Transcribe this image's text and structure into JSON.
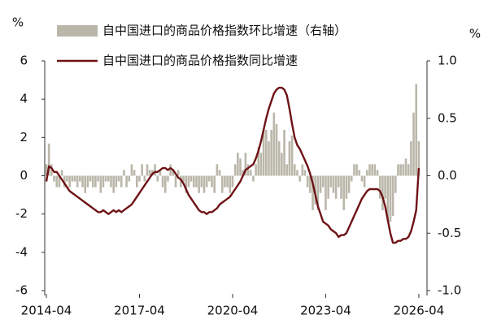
{
  "chart_data": {
    "type": "bar-line",
    "y_label": "%",
    "y2_label": "%",
    "x": [
      "2014-04",
      "2014-05",
      "2014-06",
      "2014-07",
      "2014-08",
      "2014-09",
      "2014-10",
      "2014-11",
      "2014-12",
      "2015-01",
      "2015-02",
      "2015-03",
      "2015-04",
      "2015-05",
      "2015-06",
      "2015-07",
      "2015-08",
      "2015-09",
      "2015-10",
      "2015-11",
      "2015-12",
      "2016-01",
      "2016-02",
      "2016-03",
      "2016-04",
      "2016-05",
      "2016-06",
      "2016-07",
      "2016-08",
      "2016-09",
      "2016-10",
      "2016-11",
      "2016-12",
      "2017-01",
      "2017-02",
      "2017-03",
      "2017-04",
      "2017-05",
      "2017-06",
      "2017-07",
      "2017-08",
      "2017-09",
      "2017-10",
      "2017-11",
      "2017-12",
      "2018-01",
      "2018-02",
      "2018-03",
      "2018-04",
      "2018-05",
      "2018-06",
      "2018-07",
      "2018-08",
      "2018-09",
      "2018-10",
      "2018-11",
      "2018-12",
      "2019-01",
      "2019-02",
      "2019-03",
      "2019-04",
      "2019-05",
      "2019-06",
      "2019-07",
      "2019-08",
      "2019-09",
      "2019-10",
      "2019-11",
      "2019-12",
      "2020-01",
      "2020-02",
      "2020-03",
      "2020-04",
      "2020-05",
      "2020-06",
      "2020-07",
      "2020-08",
      "2020-09",
      "2020-10",
      "2020-11",
      "2020-12",
      "2021-01",
      "2021-02",
      "2021-03",
      "2021-04",
      "2021-05",
      "2021-06",
      "2021-07",
      "2021-08",
      "2021-09",
      "2021-10",
      "2021-11",
      "2021-12",
      "2022-01",
      "2022-02",
      "2022-03",
      "2022-04",
      "2022-05",
      "2022-06",
      "2022-07",
      "2022-08",
      "2022-09",
      "2022-10",
      "2022-11",
      "2022-12",
      "2023-01",
      "2023-02",
      "2023-03",
      "2023-04",
      "2023-05",
      "2023-06",
      "2023-07",
      "2023-08",
      "2023-09",
      "2023-10",
      "2023-11",
      "2023-12",
      "2024-01",
      "2024-02",
      "2024-03",
      "2024-04",
      "2024-05",
      "2024-06",
      "2024-07",
      "2024-08",
      "2024-09",
      "2024-10",
      "2024-11",
      "2024-12",
      "2025-01",
      "2025-02",
      "2025-03",
      "2025-04",
      "2025-05",
      "2025-06",
      "2025-07",
      "2025-08",
      "2025-09",
      "2025-10",
      "2025-11",
      "2025-12",
      "2026-01",
      "2026-02",
      "2026-03",
      "2026-04"
    ],
    "xticks": [
      "2014-04",
      "2017-04",
      "2020-04",
      "2023-04",
      "2026-04"
    ],
    "series": [
      {
        "name": "自中国进口的商品价格指数环比增速（右轴）",
        "type": "bar",
        "axis": "y2",
        "color": "#bab7aa",
        "values": [
          0.1,
          0.28,
          0.1,
          -0.05,
          -0.1,
          -0.1,
          0.05,
          -0.1,
          -0.05,
          -0.1,
          -0.05,
          -0.05,
          -0.1,
          -0.05,
          -0.1,
          -0.15,
          -0.1,
          -0.05,
          -0.1,
          -0.1,
          -0.05,
          -0.15,
          -0.1,
          -0.05,
          -0.05,
          -0.1,
          -0.15,
          -0.1,
          -0.05,
          -0.1,
          0.05,
          -0.1,
          -0.05,
          0.1,
          0.05,
          -0.1,
          -0.05,
          0.1,
          -0.05,
          0.1,
          0.05,
          0.05,
          0.1,
          -0.05,
          0.05,
          -0.1,
          -0.15,
          -0.05,
          0.1,
          0.05,
          -0.1,
          0.05,
          -0.1,
          -0.05,
          -0.15,
          -0.1,
          -0.05,
          -0.1,
          -0.1,
          -0.15,
          -0.1,
          -0.15,
          -0.1,
          -0.05,
          -0.1,
          -0.15,
          0.1,
          0.05,
          -0.15,
          -0.1,
          -0.1,
          -0.15,
          -0.1,
          0.1,
          0.2,
          0.15,
          0.05,
          0.2,
          0.1,
          0.05,
          -0.05,
          0.1,
          0.25,
          0.2,
          0.4,
          0.4,
          0.3,
          0.4,
          0.55,
          0.45,
          0.3,
          0.2,
          0.4,
          0.1,
          0.3,
          0.35,
          0.1,
          0.05,
          -0.05,
          0.1,
          0.05,
          -0.1,
          -0.15,
          -0.3,
          -0.25,
          -0.3,
          -0.15,
          -0.1,
          -0.3,
          -0.2,
          -0.1,
          -0.15,
          -0.2,
          -0.1,
          -0.2,
          -0.3,
          -0.2,
          -0.15,
          -0.05,
          0.1,
          0.1,
          0.05,
          -0.05,
          -0.1,
          0.05,
          0.1,
          0.1,
          0.1,
          0.05,
          -0.2,
          -0.3,
          -0.2,
          -0.4,
          -0.4,
          -0.35,
          -0.15,
          0.1,
          0.1,
          0.1,
          0.15,
          0.1,
          0.3,
          0.55,
          0.8,
          0.3
        ]
      },
      {
        "name": "自中国进口的商品价格指数同比增速",
        "type": "line",
        "axis": "y",
        "color": "#6e1216",
        "values": [
          -0.3,
          0.5,
          0.4,
          0.2,
          0.2,
          0,
          -0.2,
          -0.4,
          -0.6,
          -0.8,
          -0.9,
          -1.0,
          -1.1,
          -1.2,
          -1.3,
          -1.4,
          -1.5,
          -1.6,
          -1.7,
          -1.8,
          -1.9,
          -1.9,
          -1.8,
          -1.9,
          -2.0,
          -1.9,
          -1.8,
          -1.9,
          -1.8,
          -1.9,
          -1.8,
          -1.7,
          -1.6,
          -1.5,
          -1.3,
          -1.1,
          -0.9,
          -0.7,
          -0.5,
          -0.3,
          -0.1,
          0.1,
          0.2,
          0.2,
          0.3,
          0.4,
          0.4,
          0.3,
          0.4,
          0.3,
          0.1,
          -0.1,
          -0.2,
          -0.4,
          -0.7,
          -1.0,
          -1.2,
          -1.4,
          -1.6,
          -1.8,
          -1.9,
          -1.9,
          -2.0,
          -1.9,
          -1.9,
          -1.8,
          -1.7,
          -1.5,
          -1.4,
          -1.3,
          -1.2,
          -1.1,
          -0.9,
          -0.7,
          -0.5,
          -0.3,
          0,
          0.3,
          0.4,
          0.5,
          0.6,
          0.9,
          1.3,
          1.8,
          2.4,
          3.0,
          3.5,
          3.9,
          4.3,
          4.5,
          4.6,
          4.6,
          4.5,
          4.2,
          3.5,
          2.7,
          2.0,
          1.6,
          1.4,
          1.1,
          0.8,
          0.5,
          0.1,
          -0.4,
          -1.0,
          -1.6,
          -2.0,
          -2.4,
          -2.5,
          -2.6,
          -2.8,
          -2.9,
          -3.0,
          -3.2,
          -3.1,
          -3.1,
          -3.0,
          -2.7,
          -2.4,
          -2.1,
          -1.8,
          -1.5,
          -1.2,
          -1.0,
          -0.8,
          -0.7,
          -0.7,
          -0.7,
          -0.7,
          -0.8,
          -1.1,
          -1.6,
          -2.3,
          -3.0,
          -3.5,
          -3.5,
          -3.4,
          -3.4,
          -3.3,
          -3.3,
          -3.2,
          -2.9,
          -2.4,
          -1.8,
          0.4
        ]
      }
    ],
    "ylim": [
      -6,
      6
    ],
    "yticks": [
      -6,
      -4,
      -2,
      0,
      2,
      4,
      6
    ],
    "y2lim": [
      -1,
      1
    ],
    "y2ticks": [
      {
        "value": -1,
        "label": "-1.0"
      },
      {
        "value": -0.5,
        "label": "-0.5"
      },
      {
        "value": 0,
        "label": "0.0"
      },
      {
        "value": 0.5,
        "label": "0.5"
      },
      {
        "value": 1,
        "label": "1.0"
      }
    ],
    "grid": false
  }
}
